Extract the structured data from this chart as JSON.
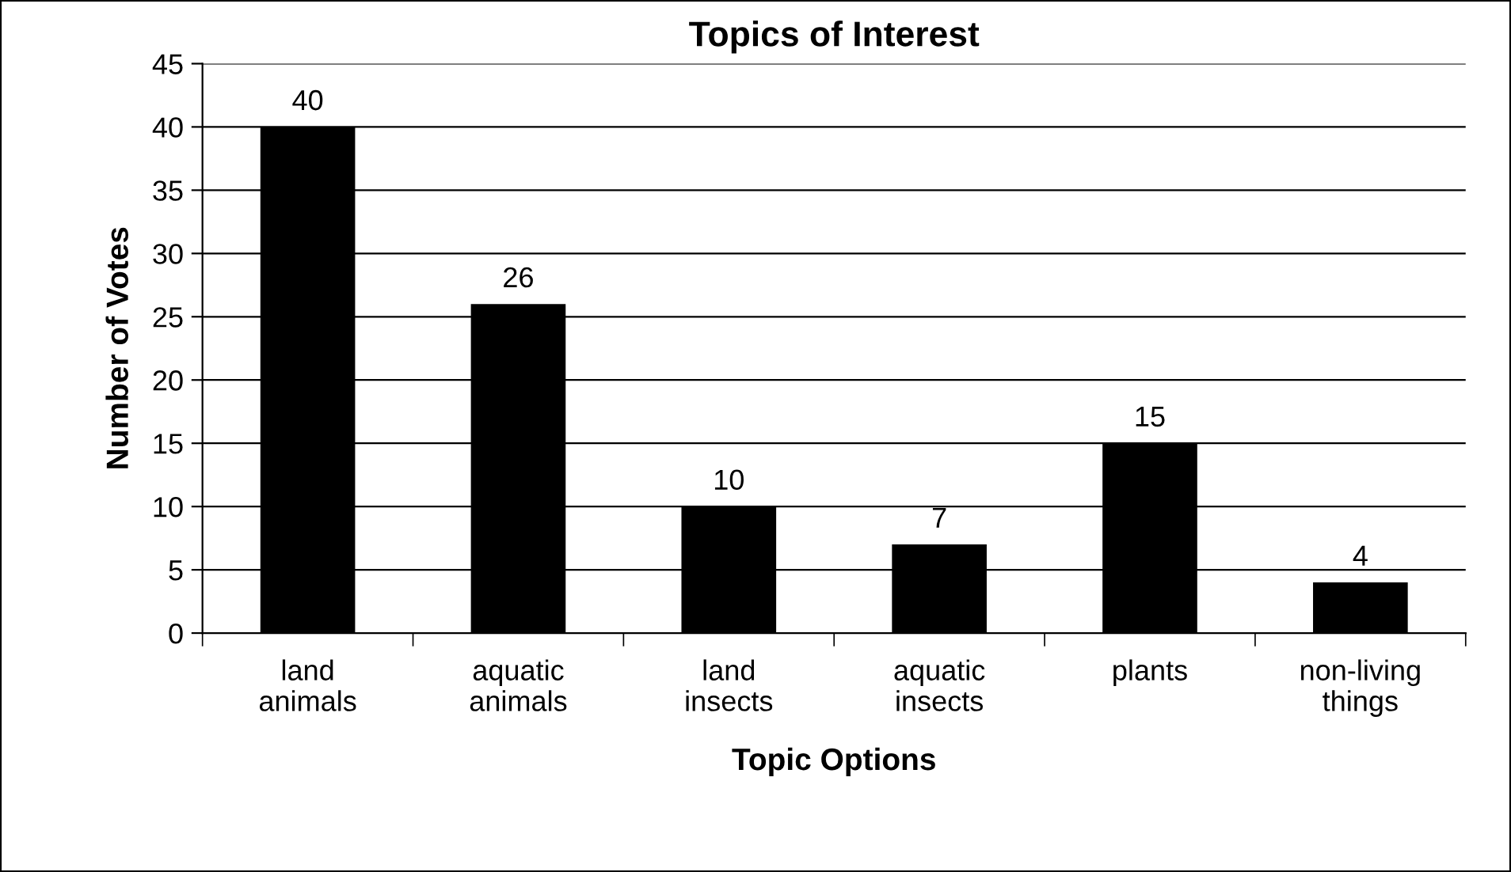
{
  "chart_data": {
    "type": "bar",
    "title": "Topics of Interest",
    "xlabel": "Topic Options",
    "ylabel": "Number of Votes",
    "categories": [
      "land\nanimals",
      "aquatic\nanimals",
      "land\ninsects",
      "aquatic\ninsects",
      "plants",
      "non-living\nthings"
    ],
    "values": [
      40,
      26,
      10,
      7,
      15,
      4
    ],
    "color": "#000000",
    "ylim": [
      0,
      45
    ],
    "yticks": [
      0,
      5,
      10,
      15,
      20,
      25,
      30,
      35,
      40,
      45
    ],
    "grid": "y",
    "data_labels": true
  }
}
